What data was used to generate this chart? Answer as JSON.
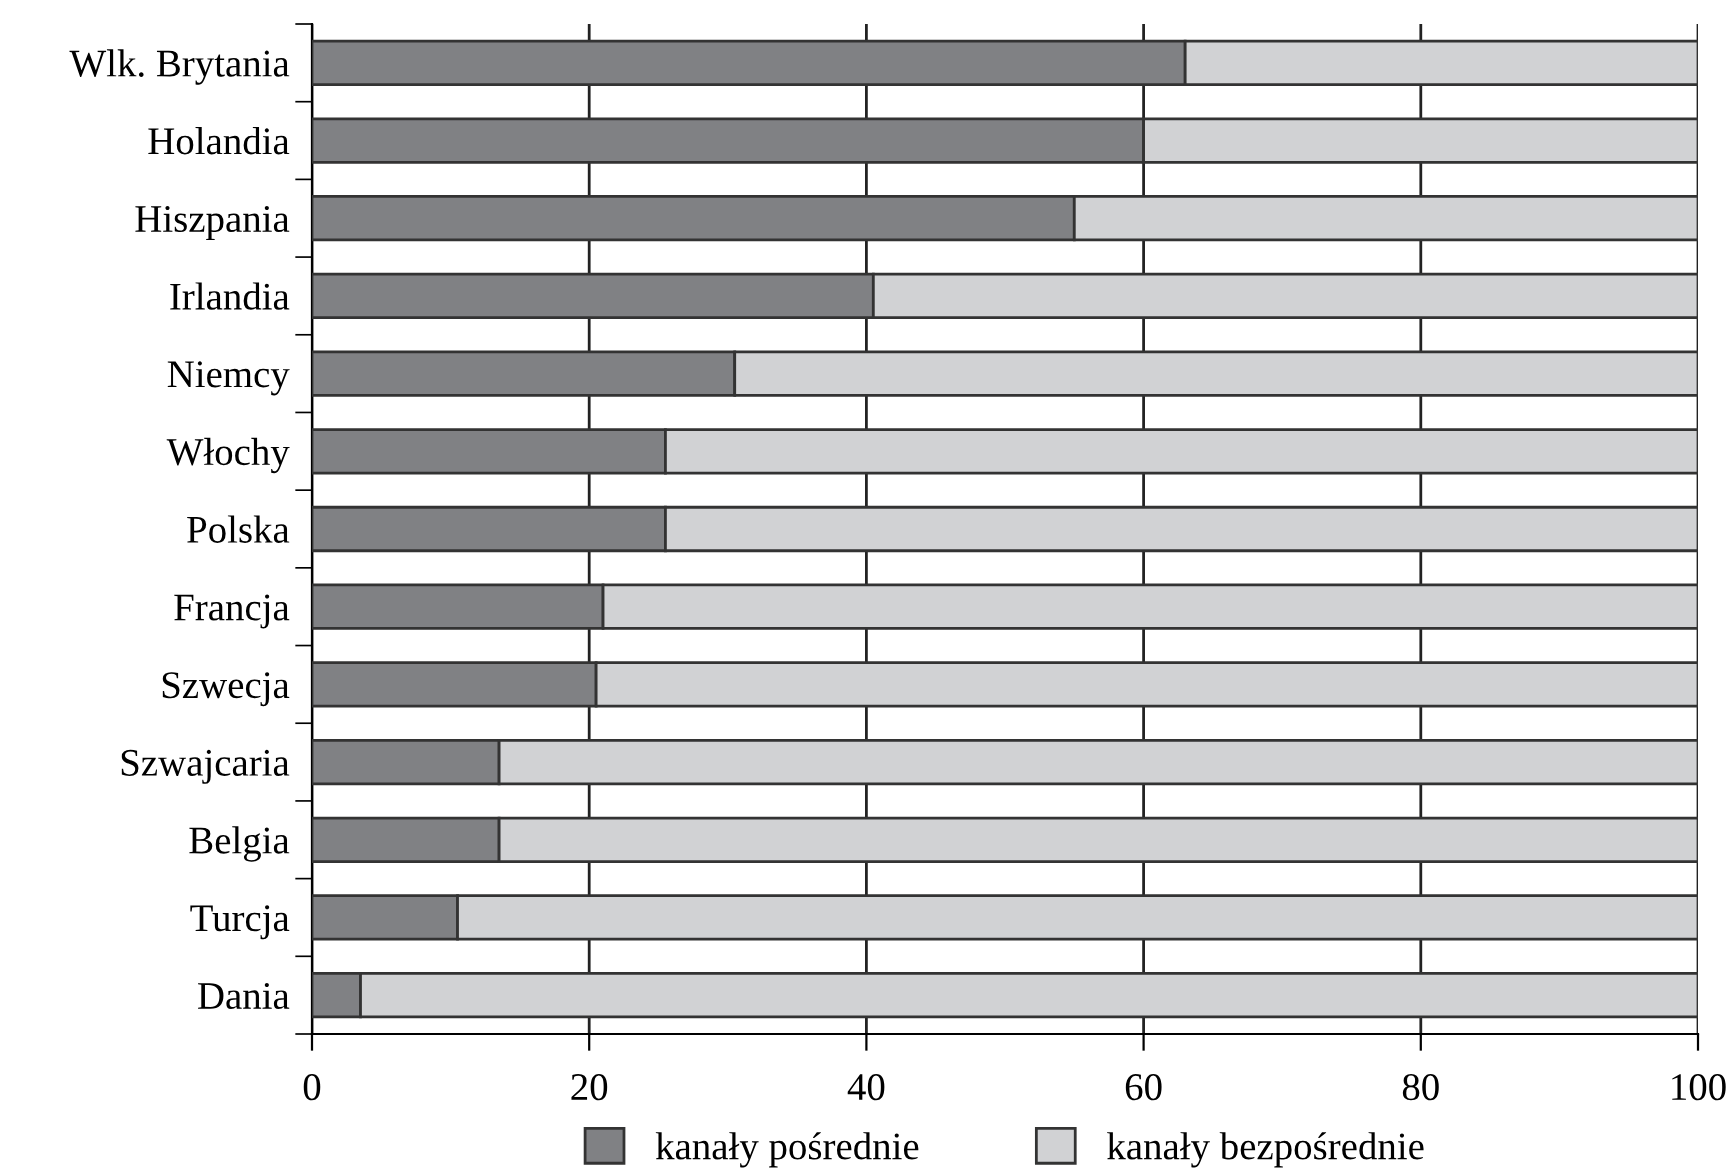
{
  "chart_data": {
    "type": "bar",
    "orientation": "horizontal",
    "stacked": true,
    "categories": [
      "Wlk. Brytania",
      "Holandia",
      "Hiszpania",
      "Irlandia",
      "Niemcy",
      "Włochy",
      "Polska",
      "Francja",
      "Szwecja",
      "Szwajcaria",
      "Belgia",
      "Turcja",
      "Dania"
    ],
    "series": [
      {
        "name": "kanały pośrednie",
        "color": "#808184",
        "values": [
          63,
          60,
          55,
          40.5,
          30.5,
          25.5,
          25.5,
          21,
          20.5,
          13.5,
          13.5,
          10.5,
          3.5
        ]
      },
      {
        "name": "kanały bezpośrednie",
        "color": "#d1d2d4",
        "values": [
          37,
          40,
          45,
          59.5,
          69.5,
          74.5,
          74.5,
          79,
          79.5,
          86.5,
          86.5,
          89.5,
          96.5
        ]
      }
    ],
    "xlim": [
      0,
      100
    ],
    "xticks": [
      0,
      20,
      40,
      60,
      80,
      100
    ],
    "grid": "x",
    "legend": "bottom"
  }
}
